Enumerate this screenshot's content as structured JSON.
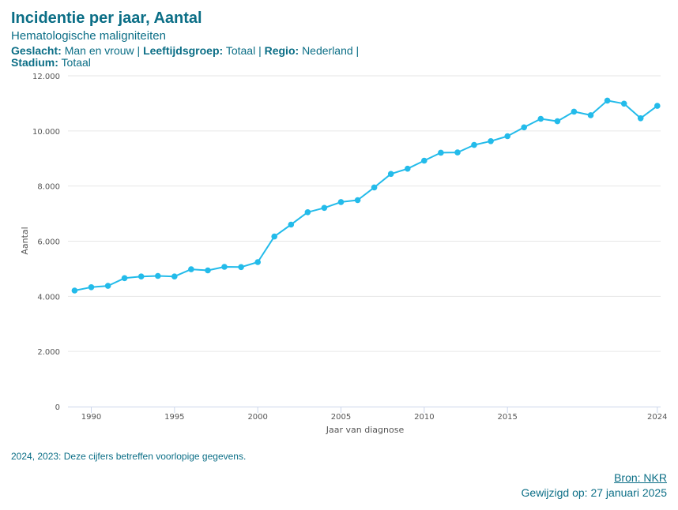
{
  "header": {
    "title": "Incidentie per jaar, Aantal",
    "subtitle": "Hematologische maligniteiten",
    "filters": [
      {
        "label": "Geslacht:",
        "value": "Man en vrouw"
      },
      {
        "label": "Leeftijdsgroep:",
        "value": "Totaal"
      },
      {
        "label": "Regio:",
        "value": "Nederland"
      },
      {
        "label": "Stadium:",
        "value": "Totaal"
      }
    ],
    "separator": " | "
  },
  "chart_data": {
    "type": "line",
    "title": "Incidentie per jaar, Aantal",
    "xlabel": "Jaar van diagnose",
    "ylabel": "Aantal",
    "xlim": [
      1989,
      2024
    ],
    "ylim": [
      0,
      12000
    ],
    "x_ticks": [
      1990,
      1995,
      2000,
      2005,
      2010,
      2015,
      2024
    ],
    "y_ticks": [
      0,
      2000,
      4000,
      6000,
      8000,
      10000,
      12000
    ],
    "y_tick_labels": [
      "0",
      "2.000",
      "4.000",
      "6.000",
      "8.000",
      "10.000",
      "12.000"
    ],
    "grid": "horizontal",
    "series_color": "#23bbea",
    "series": [
      {
        "x": [
          1989,
          1990,
          1991,
          1992,
          1993,
          1994,
          1995,
          1996,
          1997,
          1998,
          1999,
          2000,
          2001,
          2002,
          2003,
          2004,
          2005,
          2006,
          2007,
          2008,
          2009,
          2010,
          2011,
          2012,
          2013,
          2014,
          2015,
          2016,
          2017,
          2018,
          2019,
          2020,
          2021,
          2022,
          2023,
          2024
        ],
        "values": [
          4210,
          4330,
          4380,
          4660,
          4720,
          4740,
          4720,
          4980,
          4940,
          5070,
          5060,
          5240,
          6170,
          6600,
          7050,
          7210,
          7420,
          7490,
          7950,
          8440,
          8630,
          8920,
          9210,
          9220,
          9490,
          9630,
          9810,
          10130,
          10440,
          10350,
          10700,
          10570,
          11100,
          10990,
          10460,
          10910
        ]
      }
    ]
  },
  "footer": {
    "note": "2024, 2023: Deze cijfers betreffen voorlopige gegevens.",
    "source": "Bron: NKR",
    "modified": "Gewijzigd op: 27 januari 2025"
  }
}
